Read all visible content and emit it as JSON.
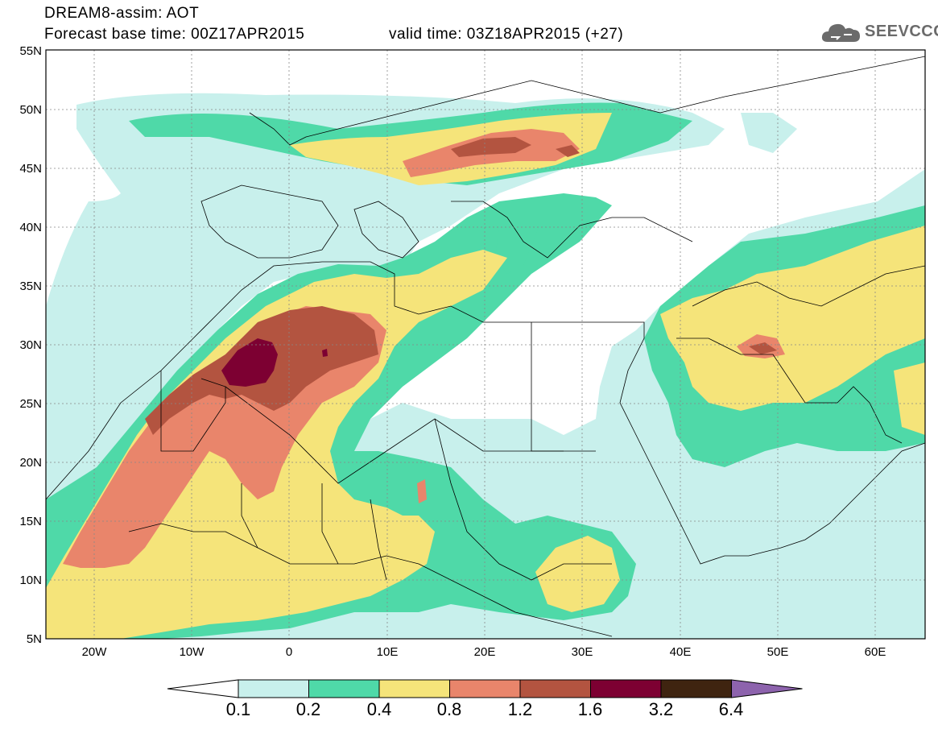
{
  "header": {
    "line1": "DREAM8-assim: AOT",
    "line2": "Forecast base time: 00Z17APR2015",
    "line3": "valid time: 03Z18APR2015 (+27)"
  },
  "logo": {
    "text": "SEEVCCC",
    "icon": "cloud-icon"
  },
  "axes": {
    "lat_labels": [
      "55N",
      "50N",
      "45N",
      "40N",
      "35N",
      "30N",
      "25N",
      "20N",
      "15N",
      "10N",
      "5N"
    ],
    "lon_labels": [
      "20W",
      "10W",
      "0",
      "10E",
      "20E",
      "30E",
      "40E",
      "50E",
      "60E"
    ]
  },
  "colorbar": {
    "labels": [
      "0.1",
      "0.2",
      "0.4",
      "0.8",
      "1.2",
      "1.6",
      "3.2",
      "6.4"
    ],
    "colors": [
      "#ffffff",
      "#c8f0ec",
      "#4fd9a8",
      "#f5e47a",
      "#e9856b",
      "#b35440",
      "#7d0032",
      "#3f2410",
      "#8d63ad"
    ]
  }
}
